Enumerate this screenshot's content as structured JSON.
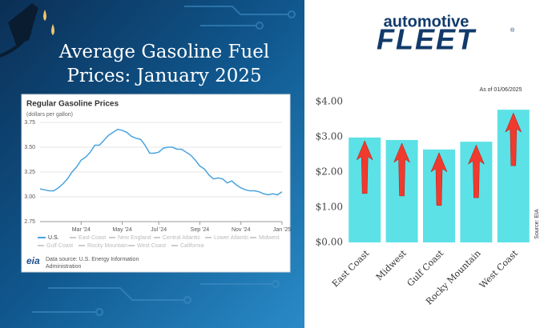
{
  "header": {
    "title_line1": "Average Gasoline Fuel",
    "title_line2": "Prices: January 2025",
    "logo_top": "automotive",
    "logo_bottom": "FLEET",
    "logo_mark": "®"
  },
  "chart_data": [
    {
      "type": "line",
      "title": "Regular Gasoline Prices",
      "subtitle": "(dollars per gallon)",
      "categories": [
        null,
        null,
        null,
        null,
        null,
        null,
        null,
        null,
        null,
        "Mar '24",
        null,
        null,
        null,
        null,
        null,
        null,
        null,
        null,
        "May '24",
        null,
        null,
        null,
        null,
        null,
        null,
        null,
        "Jul '24",
        null,
        null,
        null,
        null,
        null,
        null,
        null,
        null,
        "Sep '24",
        null,
        null,
        null,
        null,
        null,
        null,
        null,
        null,
        "Nov '24",
        null,
        null,
        null,
        null,
        null,
        null,
        null,
        null,
        "Jan '25"
      ],
      "series": [
        {
          "name": "U.S.",
          "color": "#4aa3df",
          "values": [
            3.08,
            3.07,
            3.06,
            3.06,
            3.09,
            3.13,
            3.18,
            3.25,
            3.3,
            3.37,
            3.4,
            3.45,
            3.52,
            3.52,
            3.57,
            3.62,
            3.65,
            3.68,
            3.67,
            3.65,
            3.61,
            3.59,
            3.58,
            3.52,
            3.44,
            3.44,
            3.45,
            3.49,
            3.5,
            3.5,
            3.48,
            3.48,
            3.45,
            3.42,
            3.37,
            3.31,
            3.28,
            3.22,
            3.18,
            3.19,
            3.18,
            3.14,
            3.16,
            3.12,
            3.09,
            3.07,
            3.06,
            3.06,
            3.05,
            3.03,
            3.02,
            3.03,
            3.02,
            3.05
          ]
        }
      ],
      "inactive_series": [
        "East Coast",
        "New England",
        "Central Atlantic",
        "Lower Atlantic",
        "Midwest",
        "Gulf Coast",
        "Rocky Mountain",
        "West Coast",
        "California"
      ],
      "ylim": [
        2.75,
        3.75
      ],
      "yticks": [
        2.75,
        {
          "value": 3,
          "label": "3.00"
        },
        3.25,
        {
          "value": 3.5,
          "label": "3.50"
        },
        3.75
      ],
      "grid": true,
      "source_logo": "eia",
      "source": "Data source: U.S. Energy Information",
      "source_line2": "Administration"
    },
    {
      "type": "bar",
      "annotation": "As of 01/06/2025",
      "source": "Source: EIA",
      "categories": [
        "East Coast",
        "Midwest",
        "Gulf Coast",
        "Rocky Mountain",
        "West Coast"
      ],
      "values": [
        2.98,
        2.91,
        2.64,
        2.86,
        3.77
      ],
      "color": "#5ce1e6",
      "ylim": [
        0,
        4
      ],
      "yticks": [
        {
          "value": 0,
          "label": "$0.00"
        },
        {
          "value": 1,
          "label": "$1.00"
        },
        {
          "value": 2,
          "label": "$2.00"
        },
        {
          "value": 3,
          "label": "$3.00"
        },
        {
          "value": 4,
          "label": "$4.00"
        }
      ]
    }
  ]
}
